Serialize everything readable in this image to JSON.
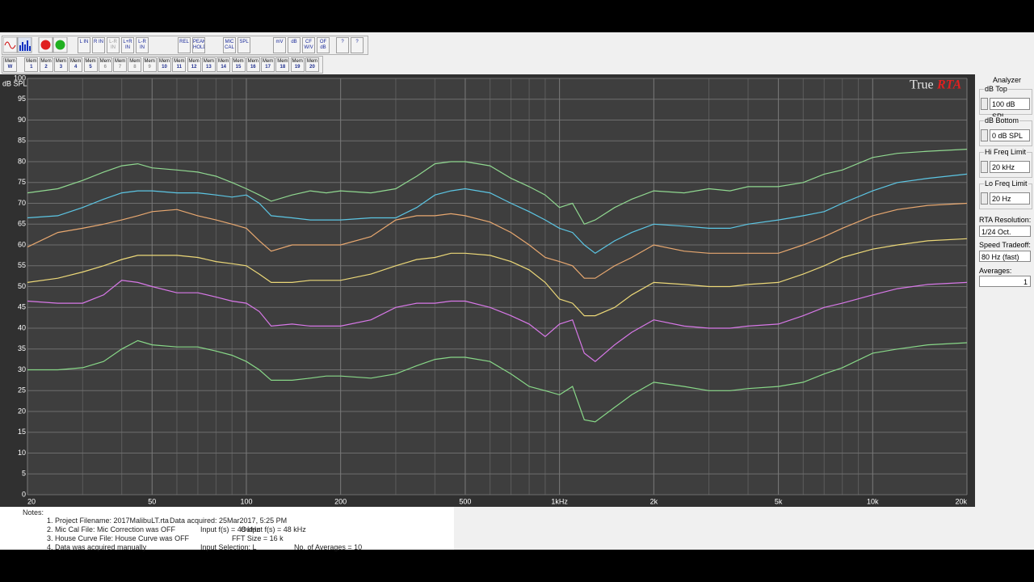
{
  "toolbar": {
    "buttons": [
      "L IN",
      "R IN",
      "L-R IN",
      "L+R IN",
      "L-R IN",
      "REL",
      "PEAK HOLD",
      "MIC CAL",
      "SPL",
      "mV",
      "dB",
      "CF W/V",
      "OF dB",
      "?",
      "?"
    ],
    "memory_prefix": "Mem",
    "memories": [
      "W",
      "1",
      "2",
      "3",
      "4",
      "5",
      "6",
      "7",
      "8",
      "9",
      "10",
      "11",
      "12",
      "13",
      "14",
      "15",
      "16",
      "17",
      "18",
      "19",
      "20"
    ]
  },
  "chart_data": {
    "type": "line",
    "watermark": [
      "True",
      "RTA"
    ],
    "ylabel": "dB SPL",
    "xscale": "log",
    "grid": true,
    "xlim": [
      20,
      20000
    ],
    "ylim": [
      0,
      100
    ],
    "xticks": [
      20,
      50,
      100,
      200,
      500,
      {
        "value": 1000,
        "label": "1kHz"
      },
      {
        "value": 2000,
        "label": "2k"
      },
      {
        "value": 5000,
        "label": "5k"
      },
      {
        "value": 10000,
        "label": "10k"
      },
      {
        "value": 20000,
        "label": "20k"
      }
    ],
    "xminorticks": [
      30,
      40,
      60,
      70,
      80,
      90,
      300,
      400,
      600,
      700,
      800,
      900,
      3000,
      4000,
      6000,
      7000,
      8000,
      9000
    ],
    "yticks": [
      0,
      5,
      10,
      15,
      20,
      25,
      30,
      35,
      40,
      45,
      50,
      55,
      60,
      65,
      70,
      75,
      80,
      85,
      90,
      95,
      100
    ],
    "x": [
      20,
      25,
      30,
      35,
      40,
      45,
      50,
      60,
      70,
      80,
      90,
      100,
      110,
      120,
      140,
      160,
      180,
      200,
      250,
      300,
      350,
      400,
      450,
      500,
      600,
      700,
      800,
      900,
      1000,
      1100,
      1200,
      1300,
      1500,
      1700,
      2000,
      2500,
      3000,
      3500,
      4000,
      5000,
      6000,
      7000,
      8000,
      10000,
      12000,
      15000,
      20000
    ],
    "series": [
      {
        "color": "#90d890",
        "values": [
          72.5,
          73.5,
          75.5,
          77.5,
          79,
          79.5,
          78.5,
          78,
          77.5,
          76.5,
          75,
          73.5,
          72,
          70.5,
          72,
          73,
          72.5,
          73,
          72.5,
          73.5,
          76.5,
          79.5,
          80,
          80,
          79,
          76,
          74,
          72,
          69,
          70,
          65,
          66,
          69,
          71,
          73,
          72.5,
          73.5,
          73,
          74,
          74,
          75,
          77,
          78,
          81,
          82,
          82.5,
          83
        ]
      },
      {
        "color": "#5cc6e4",
        "values": [
          66.5,
          67,
          69,
          71,
          72.5,
          73,
          73,
          72.5,
          72.5,
          72,
          71.5,
          72,
          70,
          67,
          66.5,
          66,
          66,
          66,
          66.5,
          66.5,
          69,
          72,
          73,
          73.5,
          72.5,
          70,
          68,
          66,
          64,
          63,
          60,
          58,
          61,
          63,
          65,
          64.5,
          64,
          64,
          65,
          66,
          67,
          68,
          70,
          73,
          75,
          76,
          77
        ]
      },
      {
        "color": "#e8a870",
        "values": [
          59.5,
          63,
          64,
          65,
          66,
          67,
          68,
          68.5,
          67,
          66,
          65,
          64,
          61,
          58.5,
          60,
          60,
          60,
          60,
          62,
          66,
          67,
          67,
          67.5,
          67,
          65.5,
          63,
          60,
          57,
          56,
          55,
          52,
          52,
          55,
          57,
          60,
          58.5,
          58,
          58,
          58,
          58,
          60,
          62,
          64,
          67,
          68.5,
          69.5,
          70
        ]
      },
      {
        "color": "#ecd878",
        "values": [
          51,
          52,
          53.5,
          55,
          56.5,
          57.5,
          57.5,
          57.5,
          57,
          56,
          55.5,
          55,
          53,
          51,
          51,
          51.5,
          51.5,
          51.5,
          53,
          55,
          56.5,
          57,
          58,
          58,
          57.5,
          56,
          54,
          51,
          47,
          46,
          43,
          43,
          45,
          48,
          51,
          50.5,
          50,
          50,
          50.5,
          51,
          53,
          55,
          57,
          59,
          60,
          61,
          61.5
        ]
      },
      {
        "color": "#d878e8",
        "values": [
          46.5,
          46,
          46,
          48,
          51.5,
          51,
          50,
          48.5,
          48.5,
          47.5,
          46.5,
          46,
          44,
          40.5,
          41,
          40.5,
          40.5,
          40.5,
          42,
          45,
          46,
          46,
          46.5,
          46.5,
          45,
          43,
          41,
          38,
          41,
          42,
          34,
          32,
          36,
          39,
          42,
          40.5,
          40,
          40,
          40.5,
          41,
          43,
          45,
          46,
          48,
          49.5,
          50.5,
          51
        ]
      },
      {
        "color": "#88d888",
        "values": [
          30,
          30,
          30.5,
          32,
          35,
          37,
          36,
          35.5,
          35.5,
          34.5,
          33.5,
          32,
          30,
          27.5,
          27.5,
          28,
          28.5,
          28.5,
          28,
          29,
          31,
          32.5,
          33,
          33,
          32,
          29,
          26,
          25,
          24,
          26,
          18,
          17.5,
          21,
          24,
          27,
          26,
          25,
          25,
          25.5,
          26,
          27,
          29,
          30.5,
          34,
          35,
          36,
          36.5
        ]
      }
    ]
  },
  "panel": {
    "title": "Analyzer",
    "fields": [
      {
        "label": "dB Top",
        "value": "100 dB SPL"
      },
      {
        "label": "dB Bottom",
        "value": "0 dB SPL"
      },
      {
        "label": "Hi Freq Limit",
        "value": "20 kHz"
      },
      {
        "label": "Lo Freq Limit",
        "value": "20 Hz"
      }
    ],
    "rta_label": "RTA Resolution:",
    "rta_value": "1/24 Oct.",
    "speed_label": "Speed Tradeoff:",
    "speed_value": "80 Hz (fast)",
    "averages_label": "Averages:",
    "averages_value": "1"
  },
  "notes": {
    "title": "Notes:",
    "rows": [
      [
        "1. Project Filename: 2017MalibuLT.rta",
        "Data acquired: 25Mar2017, 5:25 PM"
      ],
      [
        "2. Mic Cal File: Mic Correction was OFF",
        "Input f(s) = 48 kHz",
        "Output f(s) = 48 kHz"
      ],
      [
        "3. House Curve File: House Curve was OFF",
        "FFT Size = 16 k"
      ],
      [
        "4. Data was acquired manually",
        "Input Selection: L",
        "No. of Averages = 10"
      ]
    ]
  }
}
